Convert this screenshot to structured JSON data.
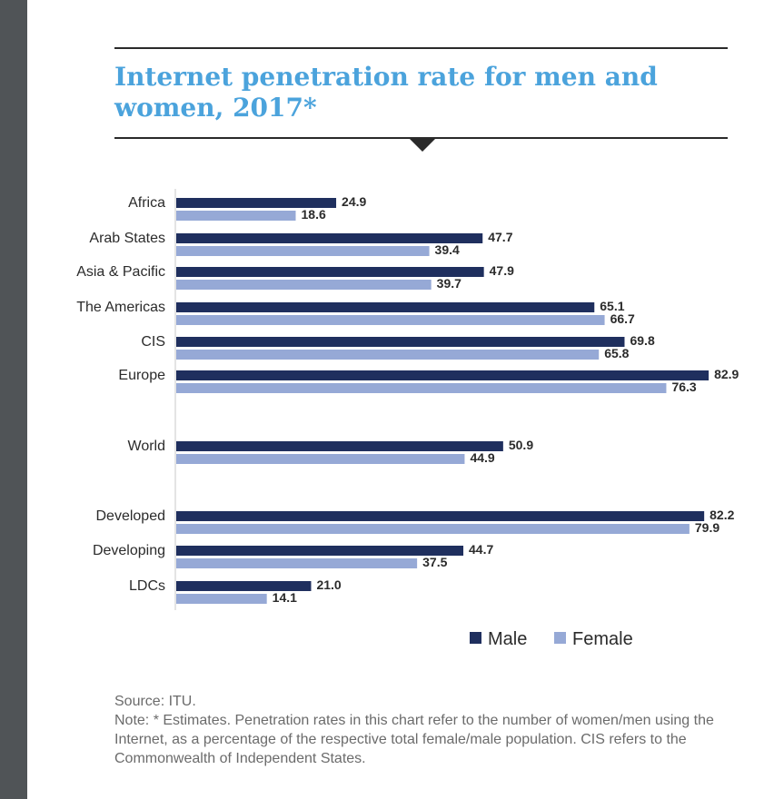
{
  "chart_data": {
    "type": "bar",
    "orientation": "horizontal",
    "title": "Internet penetration rate for men and women, 2017*",
    "categories": [
      "Africa",
      "Arab States",
      "Asia & Pacific",
      "The Americas",
      "CIS",
      "Europe",
      "World",
      "Developed",
      "Developing",
      "LDCs"
    ],
    "series": [
      {
        "name": "Male",
        "color": "#1f2f5e",
        "values": [
          24.9,
          47.7,
          47.9,
          65.1,
          69.8,
          82.9,
          50.9,
          82.2,
          44.7,
          21.0
        ]
      },
      {
        "name": "Female",
        "color": "#96a9d6",
        "values": [
          18.6,
          39.4,
          39.7,
          66.7,
          65.8,
          76.3,
          44.9,
          79.9,
          37.5,
          14.1
        ]
      }
    ],
    "value_labels": {
      "Male": [
        "24.9",
        "47.7",
        "47.9",
        "65.1",
        "69.8",
        "82.9",
        "50.9",
        "82.2",
        "44.7",
        "21.0"
      ],
      "Female": [
        "18.6",
        "39.4",
        "39.7",
        "66.7",
        "65.8",
        "76.3",
        "44.9",
        "79.9",
        "37.5",
        "14.1"
      ]
    },
    "xlim": [
      0,
      100
    ],
    "grid": false,
    "legend": "bottom-right"
  },
  "source": "Source: ITU.",
  "note": "Note: * Estimates. Penetration rates in this chart refer to the number of women/men using the Internet, as a percentage of the respective total female/male population. CIS refers to the Commonwealth of Independent States."
}
